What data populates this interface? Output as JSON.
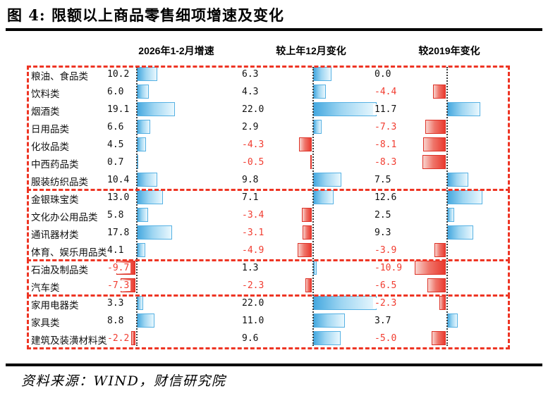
{
  "title": "图 4: 限额以上商品零售细项增速及变化",
  "source": "资料来源：WIND，财信研究院",
  "chart_data": {
    "type": "bar",
    "orientation": "horizontal",
    "title": "图 4: 限额以上商品零售细项增速及变化",
    "unit": "percentage points, one decimal shown beside each bar",
    "grid": false,
    "legend_position": "column headers above each panel",
    "categories": [
      "粮油、食品类",
      "饮料类",
      "烟酒类",
      "日用品类",
      "化妆品类",
      "中西药品类",
      "服装纺织品类",
      "金银珠宝类",
      "文化办公用品类",
      "通讯器材类",
      "体育、娱乐用品类",
      "石油及制品类",
      "汽车类",
      "家用电器类",
      "家具类",
      "建筑及装潢材料类"
    ],
    "series": [
      {
        "name": "2026年1-2月增速",
        "values": [
          10.2,
          6.0,
          19.1,
          6.6,
          4.5,
          0.7,
          10.4,
          13.0,
          5.8,
          17.8,
          4.1,
          -9.7,
          -7.3,
          3.3,
          8.8,
          -2.2
        ]
      },
      {
        "name": "较上年12月变化",
        "values": [
          6.3,
          4.3,
          22.0,
          2.9,
          -4.3,
          -0.5,
          9.8,
          7.1,
          -3.4,
          -3.1,
          -4.9,
          1.3,
          -2.3,
          22.0,
          11.0,
          9.6
        ]
      },
      {
        "name": "较2019年变化",
        "values": [
          0.0,
          -4.4,
          11.7,
          -7.3,
          -8.1,
          -8.3,
          7.5,
          12.6,
          2.5,
          9.3,
          -3.9,
          -10.9,
          -6.5,
          -2.3,
          3.7,
          -5.0
        ]
      }
    ],
    "group_sizes": [
      7,
      4,
      2,
      3
    ],
    "colors": {
      "positive_bar": "#45a8df",
      "negative_bar": "#e9392e",
      "positive_text": "#111111",
      "negative_text": "#f13c30",
      "group_border": "#ee3524",
      "zero_axis": "#3c3c3c"
    }
  }
}
